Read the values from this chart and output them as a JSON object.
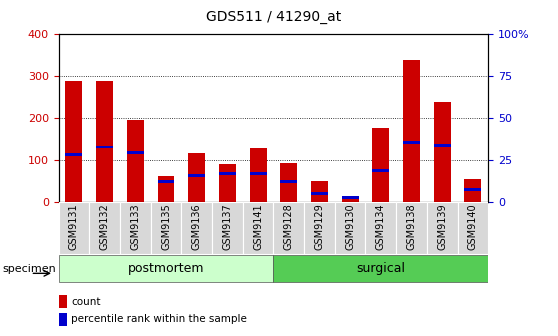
{
  "title": "GDS511 / 41290_at",
  "samples": [
    "GSM9131",
    "GSM9132",
    "GSM9133",
    "GSM9135",
    "GSM9136",
    "GSM9137",
    "GSM9141",
    "GSM9128",
    "GSM9129",
    "GSM9130",
    "GSM9134",
    "GSM9138",
    "GSM9139",
    "GSM9140"
  ],
  "counts": [
    288,
    288,
    195,
    62,
    115,
    90,
    128,
    92,
    50,
    13,
    175,
    338,
    238,
    55
  ],
  "percentiles_left_axis": [
    112,
    130,
    118,
    47,
    63,
    66,
    68,
    48,
    20,
    10,
    75,
    140,
    133,
    28
  ],
  "groups": [
    {
      "name": "postmortem",
      "start": 0,
      "end": 7,
      "color": "#ccffcc"
    },
    {
      "name": "surgical",
      "start": 7,
      "end": 14,
      "color": "#55cc55"
    }
  ],
  "bar_color": "#cc0000",
  "percentile_color": "#0000cc",
  "ylim_left": [
    0,
    400
  ],
  "ylim_right": [
    0,
    100
  ],
  "yticks_left": [
    0,
    100,
    200,
    300,
    400
  ],
  "yticks_right": [
    0,
    25,
    50,
    75,
    100
  ],
  "bar_width": 0.55,
  "perc_bar_width": 0.55,
  "perc_bar_thickness": 6,
  "title_fontsize": 10,
  "tick_fontsize": 7,
  "legend_fontsize": 7.5,
  "group_fontsize": 9,
  "specimen_fontsize": 8
}
